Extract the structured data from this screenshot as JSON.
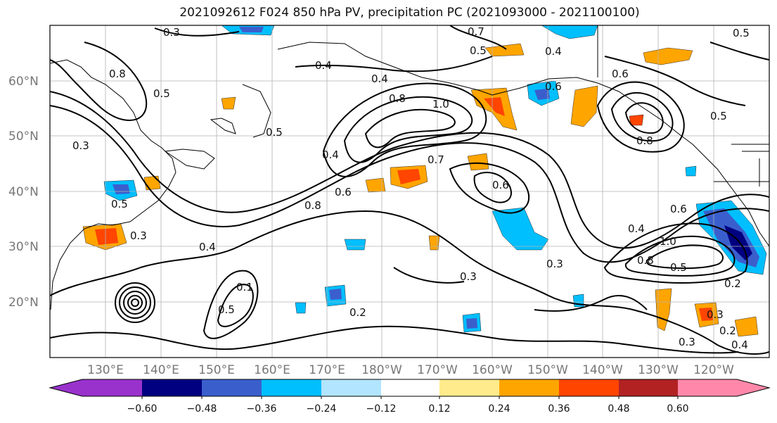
{
  "title": "2021092612 F024 850 hPa PV, precipitation PC (2021093000 - 2021100100)",
  "lat_labels": [
    "60°N",
    "50°N",
    "40°N",
    "30°N",
    "20°N"
  ],
  "lon_labels": [
    "130°E",
    "140°E",
    "150°E",
    "160°E",
    "170°E",
    "180°W",
    "170°W",
    "160°W",
    "150°W",
    "140°W",
    "130°W",
    "120°W"
  ],
  "colorbar": {
    "ticks": [
      "−0.60",
      "−0.48",
      "−0.36",
      "−0.24",
      "−0.12",
      "0.12",
      "0.24",
      "0.36",
      "0.48",
      "0.60"
    ],
    "colors": [
      "#9932cc",
      "#000080",
      "#3a5fcd",
      "#00bfff",
      "#b2e5ff",
      "#ffffff",
      "#ffeb8c",
      "#ffa500",
      "#ff4500",
      "#b22222",
      "#ff88aa"
    ]
  },
  "contour_labels": [
    "0.3",
    "0.4",
    "0.4",
    "0.7",
    "0.5",
    "0.4",
    "0.8",
    "0.6",
    "0.8",
    "1.0",
    "0.5",
    "0.5",
    "0.4",
    "0.7",
    "0.8",
    "0.6",
    "0.6",
    "0.3",
    "0.5",
    "0.5",
    "0.3",
    "0.4",
    "0.5",
    "0.2",
    "0.3",
    "0.6",
    "0.4",
    "1.0",
    "0.8",
    "0.5",
    "0.2",
    "0.3",
    "0.3",
    "0.2",
    "0.4",
    "0.8",
    "0.6",
    "0.3",
    "0.1",
    "0.5"
  ]
}
